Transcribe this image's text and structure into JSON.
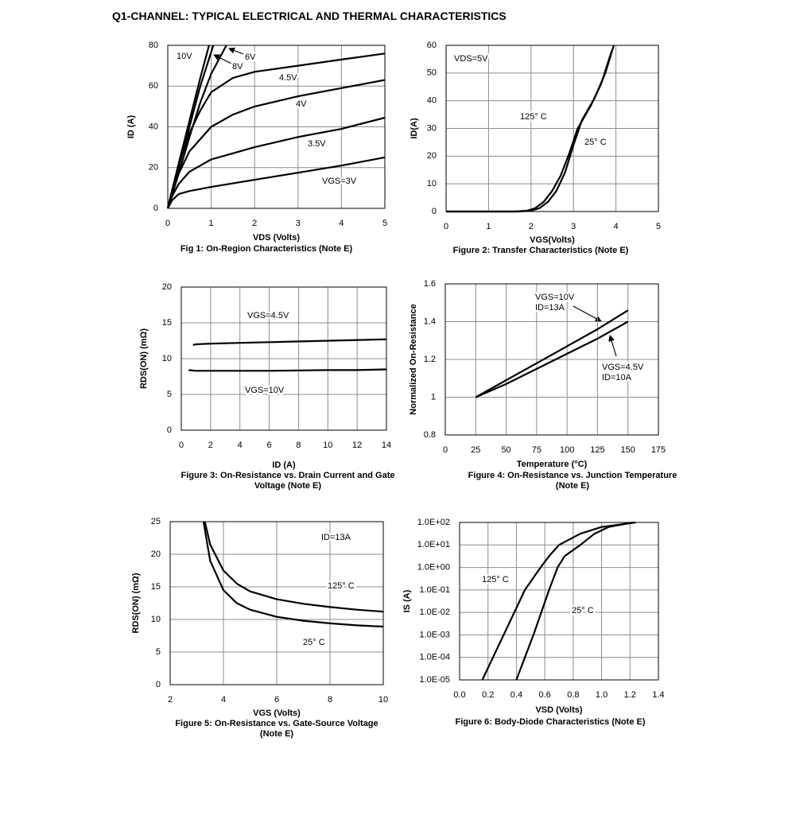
{
  "title": "Q1-CHANNEL: TYPICAL ELECTRICAL AND THERMAL CHARACTERISTICS",
  "chart_data": [
    {
      "type": "line",
      "title": "Fig 1: On-Region Characteristics (Note E)",
      "xlabel": "VDS (Volts)",
      "ylabel": "ID (A)",
      "xlim": [
        0,
        5
      ],
      "ylim": [
        0,
        80
      ],
      "xticks": [
        0,
        1,
        2,
        3,
        4,
        5
      ],
      "yticks": [
        0,
        20,
        40,
        60,
        80
      ],
      "grid": true,
      "series": [
        {
          "name": "10V",
          "color": "#000000",
          "x": [
            0,
            0.25,
            0.5,
            0.75,
            0.95
          ],
          "values": [
            0,
            22,
            43,
            64,
            80
          ]
        },
        {
          "name": "6V",
          "color": "#000000",
          "x": [
            0,
            0.25,
            0.5,
            0.75,
            1,
            1.35
          ],
          "values": [
            0,
            17,
            35,
            52,
            66,
            80
          ]
        },
        {
          "name": "8V",
          "color": "#000000",
          "x": [
            0,
            0.25,
            0.5,
            0.75,
            1.05
          ],
          "values": [
            0,
            20,
            40,
            60,
            80
          ]
        },
        {
          "name": "4.5V",
          "color": "#000000",
          "x": [
            0,
            0.1,
            0.25,
            0.5,
            0.75,
            1,
            1.5,
            2,
            3,
            4,
            5
          ],
          "values": [
            0,
            9,
            21,
            37,
            48,
            57,
            64,
            67,
            70,
            73,
            76
          ]
        },
        {
          "name": "4V",
          "color": "#000000",
          "x": [
            0,
            0.1,
            0.25,
            0.5,
            1,
            1.5,
            2,
            3,
            4,
            5
          ],
          "values": [
            0,
            8,
            17,
            28,
            40,
            46,
            50,
            55,
            59,
            63
          ]
        },
        {
          "name": "3.5V",
          "color": "#000000",
          "x": [
            0,
            0.1,
            0.25,
            0.5,
            1,
            1.5,
            2,
            3,
            4,
            5
          ],
          "values": [
            0,
            6,
            12,
            18,
            24,
            27,
            30,
            35,
            39,
            44.5
          ]
        },
        {
          "name": "VGS=3V",
          "color": "#000000",
          "x": [
            0,
            0.1,
            0.25,
            0.5,
            1,
            2,
            3,
            4,
            5
          ],
          "values": [
            0,
            4,
            7,
            8.5,
            10.5,
            14,
            17.5,
            21,
            25
          ]
        }
      ]
    },
    {
      "type": "line",
      "title": "Figure 2: Transfer Characteristics (Note E)",
      "xlabel": "VGS(Volts)",
      "ylabel": "ID(A)",
      "xlim": [
        0,
        5
      ],
      "ylim": [
        0,
        60
      ],
      "xticks": [
        0,
        1,
        2,
        3,
        4,
        5
      ],
      "yticks": [
        0,
        10,
        20,
        30,
        40,
        50,
        60
      ],
      "grid": true,
      "annotations": [
        "VDS=5V"
      ],
      "series": [
        {
          "name": "125° C",
          "color": "#000000",
          "x": [
            0,
            1.6,
            1.9,
            2.1,
            2.3,
            2.5,
            2.7,
            2.9,
            3.1,
            3.4,
            3.65,
            3.9
          ],
          "values": [
            0,
            0,
            0.3,
            1.2,
            3.5,
            7.5,
            13,
            21,
            30,
            38,
            46,
            58
          ]
        },
        {
          "name": "25° C",
          "color": "#000000",
          "x": [
            0,
            1.7,
            2.0,
            2.2,
            2.4,
            2.6,
            2.8,
            3.0,
            3.2,
            3.5,
            3.75,
            3.95
          ],
          "values": [
            0,
            0,
            0.3,
            1.2,
            3.5,
            7.5,
            14,
            24,
            33,
            41,
            50,
            60
          ]
        }
      ]
    },
    {
      "type": "line",
      "title": "Figure 3: On-Resistance vs. Drain Current and Gate Voltage (Note E)",
      "xlabel": "ID (A)",
      "ylabel": "RDS(ON) (mΩ)",
      "xlim": [
        0,
        14
      ],
      "ylim": [
        0,
        20
      ],
      "xticks": [
        0,
        2,
        4,
        6,
        8,
        10,
        12,
        14
      ],
      "yticks": [
        0,
        5,
        10,
        15,
        20
      ],
      "grid": true,
      "series": [
        {
          "name": "VGS=4.5V",
          "color": "#000000",
          "x": [
            0.8,
            1,
            2,
            4,
            6,
            8,
            10,
            12,
            14
          ],
          "values": [
            11.9,
            12,
            12.1,
            12.2,
            12.3,
            12.4,
            12.5,
            12.6,
            12.7
          ]
        },
        {
          "name": "VGS=10V",
          "color": "#000000",
          "x": [
            0.5,
            1,
            2,
            4,
            6,
            8,
            10,
            12,
            14
          ],
          "values": [
            8.4,
            8.3,
            8.3,
            8.3,
            8.3,
            8.35,
            8.4,
            8.4,
            8.5
          ]
        }
      ]
    },
    {
      "type": "line",
      "title": "Figure 4: On-Resistance vs. Junction Temperature (Note E)",
      "xlabel": "Temperature (°C)",
      "ylabel": "Normalized On-Resistance",
      "xlim": [
        0,
        175
      ],
      "ylim": [
        0.8,
        1.6
      ],
      "xticks": [
        0,
        25,
        50,
        75,
        100,
        125,
        150,
        175
      ],
      "yticks": [
        0.8,
        1,
        1.2,
        1.4,
        1.6
      ],
      "grid": true,
      "series": [
        {
          "name": "VGS=10V",
          "condition": "ID=13A",
          "color": "#000000",
          "x": [
            25,
            50,
            75,
            100,
            125,
            150
          ],
          "values": [
            1,
            1.09,
            1.18,
            1.27,
            1.36,
            1.46
          ]
        },
        {
          "name": "VGS=4.5V",
          "condition": "ID=10A",
          "color": "#000000",
          "x": [
            25,
            50,
            75,
            100,
            125,
            150
          ],
          "values": [
            1,
            1.07,
            1.15,
            1.23,
            1.31,
            1.4
          ]
        }
      ]
    },
    {
      "type": "line",
      "title": "Figure 5: On-Resistance vs. Gate-Source Voltage (Note E)",
      "xlabel": "VGS (Volts)",
      "ylabel": "RDS(ON) (mΩ)",
      "xlim": [
        2,
        10
      ],
      "ylim": [
        0,
        25
      ],
      "xticks": [
        2,
        4,
        6,
        8,
        10
      ],
      "yticks": [
        0,
        5,
        10,
        15,
        20,
        25
      ],
      "grid": true,
      "annotations": [
        "ID=13A"
      ],
      "series": [
        {
          "name": "125° C",
          "color": "#000000",
          "x": [
            3.3,
            3.5,
            4,
            4.5,
            5,
            6,
            7,
            8,
            9,
            10
          ],
          "values": [
            25,
            21.5,
            17.5,
            15.5,
            14.3,
            13.1,
            12.4,
            11.9,
            11.5,
            11.2
          ]
        },
        {
          "name": "25° C",
          "color": "#000000",
          "x": [
            3.25,
            3.5,
            4,
            4.5,
            5,
            6,
            7,
            8,
            9,
            10
          ],
          "values": [
            25,
            19,
            14.5,
            12.5,
            11.5,
            10.4,
            9.8,
            9.4,
            9.1,
            8.9
          ]
        }
      ]
    },
    {
      "type": "line",
      "title": "Figure 6: Body-Diode Characteristics (Note E)",
      "xlabel": "VSD (Volts)",
      "ylabel": "IS (A)",
      "xlim": [
        0,
        1.4
      ],
      "ylim": [
        1e-05,
        100
      ],
      "ylog": true,
      "xticks": [
        {
          "value": 0,
          "label": "0.0"
        },
        0.2,
        0.4,
        0.6,
        0.8,
        {
          "value": 1,
          "label": "1.0"
        },
        1.2,
        1.4
      ],
      "yticks": [
        {
          "value": 1e-05,
          "label": "1.0E-05"
        },
        {
          "value": 0.0001,
          "label": "1.0E-04"
        },
        {
          "value": 0.001,
          "label": "1.0E-03"
        },
        {
          "value": 0.01,
          "label": "1.0E-02"
        },
        {
          "value": 0.1,
          "label": "1.0E-01"
        },
        {
          "value": 1,
          "label": "1.0E+00"
        },
        {
          "value": 10,
          "label": "1.0E+01"
        },
        {
          "value": 100,
          "label": "1.0E+02"
        }
      ],
      "grid": true,
      "series": [
        {
          "name": "125° C",
          "color": "#000000",
          "x": [
            0.16,
            0.235,
            0.31,
            0.385,
            0.46,
            0.57,
            0.63,
            0.7,
            0.85,
            1.0,
            1.24
          ],
          "values": [
            1e-05,
            0.0001,
            0.001,
            0.01,
            0.1,
            1,
            3.16,
            10,
            31.6,
            63,
            100
          ]
        },
        {
          "name": "25° C",
          "color": "#000000",
          "x": [
            0.4,
            0.46,
            0.52,
            0.575,
            0.63,
            0.69,
            0.74,
            0.85,
            0.95,
            1.05,
            1.22
          ],
          "values": [
            1e-05,
            0.0001,
            0.001,
            0.01,
            0.1,
            1,
            3.16,
            10,
            31.6,
            63,
            100
          ]
        }
      ]
    }
  ]
}
